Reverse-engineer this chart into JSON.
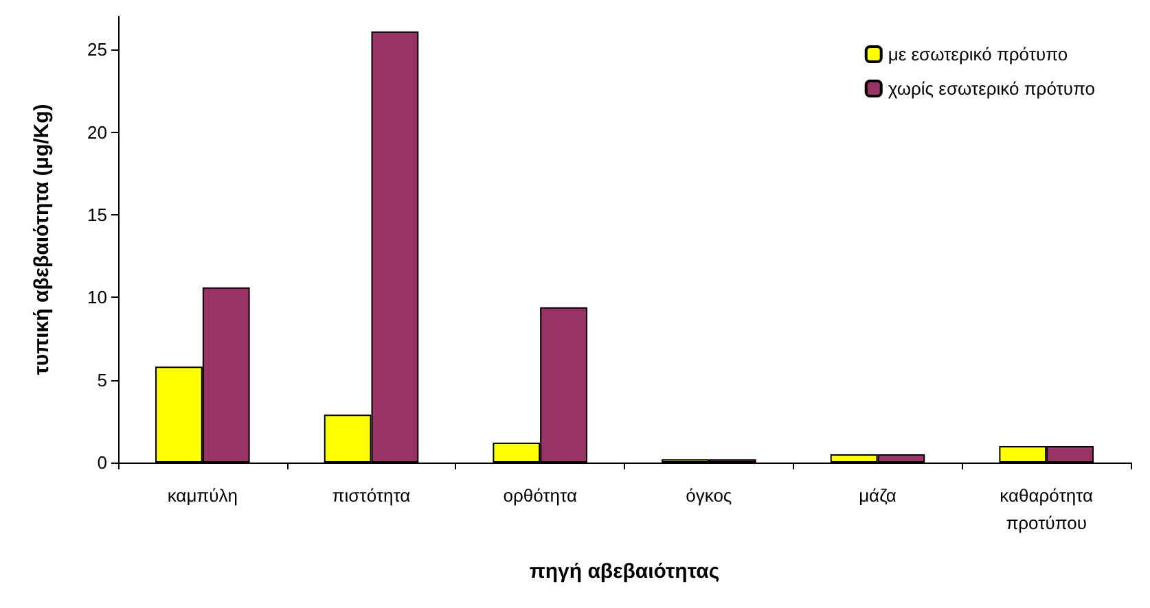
{
  "chart_data": {
    "type": "bar",
    "xlabel": "πηγή αβεβαιότητας",
    "ylabel": "τυπική αβεβαιότητα (μg/Kg)",
    "categories": [
      "καμπύλη",
      "πιστότητα",
      "ορθότητα",
      "όγκος",
      "μάζα",
      "καθαρότητα προτύπου"
    ],
    "series": [
      {
        "name": "με εσωτερικό πρότυπο",
        "color": "#ffff00",
        "values": [
          5.8,
          2.9,
          1.2,
          0.2,
          0.5,
          1.0
        ]
      },
      {
        "name": "χωρίς εσωτερικό πρότυπο",
        "color": "#993366",
        "values": [
          10.6,
          26.1,
          9.4,
          0.2,
          0.5,
          1.0
        ]
      }
    ],
    "ylim": [
      0,
      27
    ],
    "yticks": [
      0,
      5,
      10,
      15,
      20,
      25
    ],
    "grid": false,
    "legend": "top right"
  }
}
